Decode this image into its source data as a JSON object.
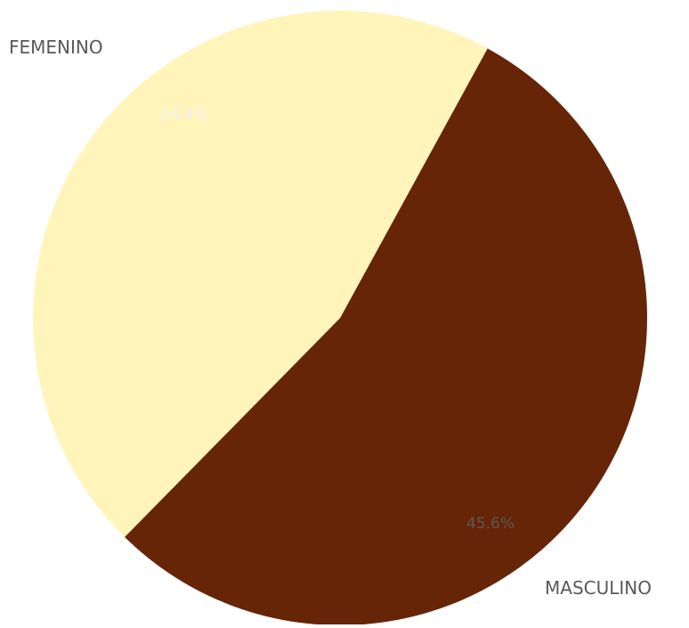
{
  "chart_data": {
    "type": "pie",
    "categories": [
      "FEMENINO",
      "MASCULINO"
    ],
    "values": [
      54.4,
      45.6
    ],
    "data_labels": [
      "54.4%",
      "45.6%"
    ],
    "colors": [
      "#662506",
      "#fff5bb"
    ],
    "label_colors": [
      "#f2f2f2",
      "#595959"
    ],
    "title": "",
    "legend": false
  }
}
